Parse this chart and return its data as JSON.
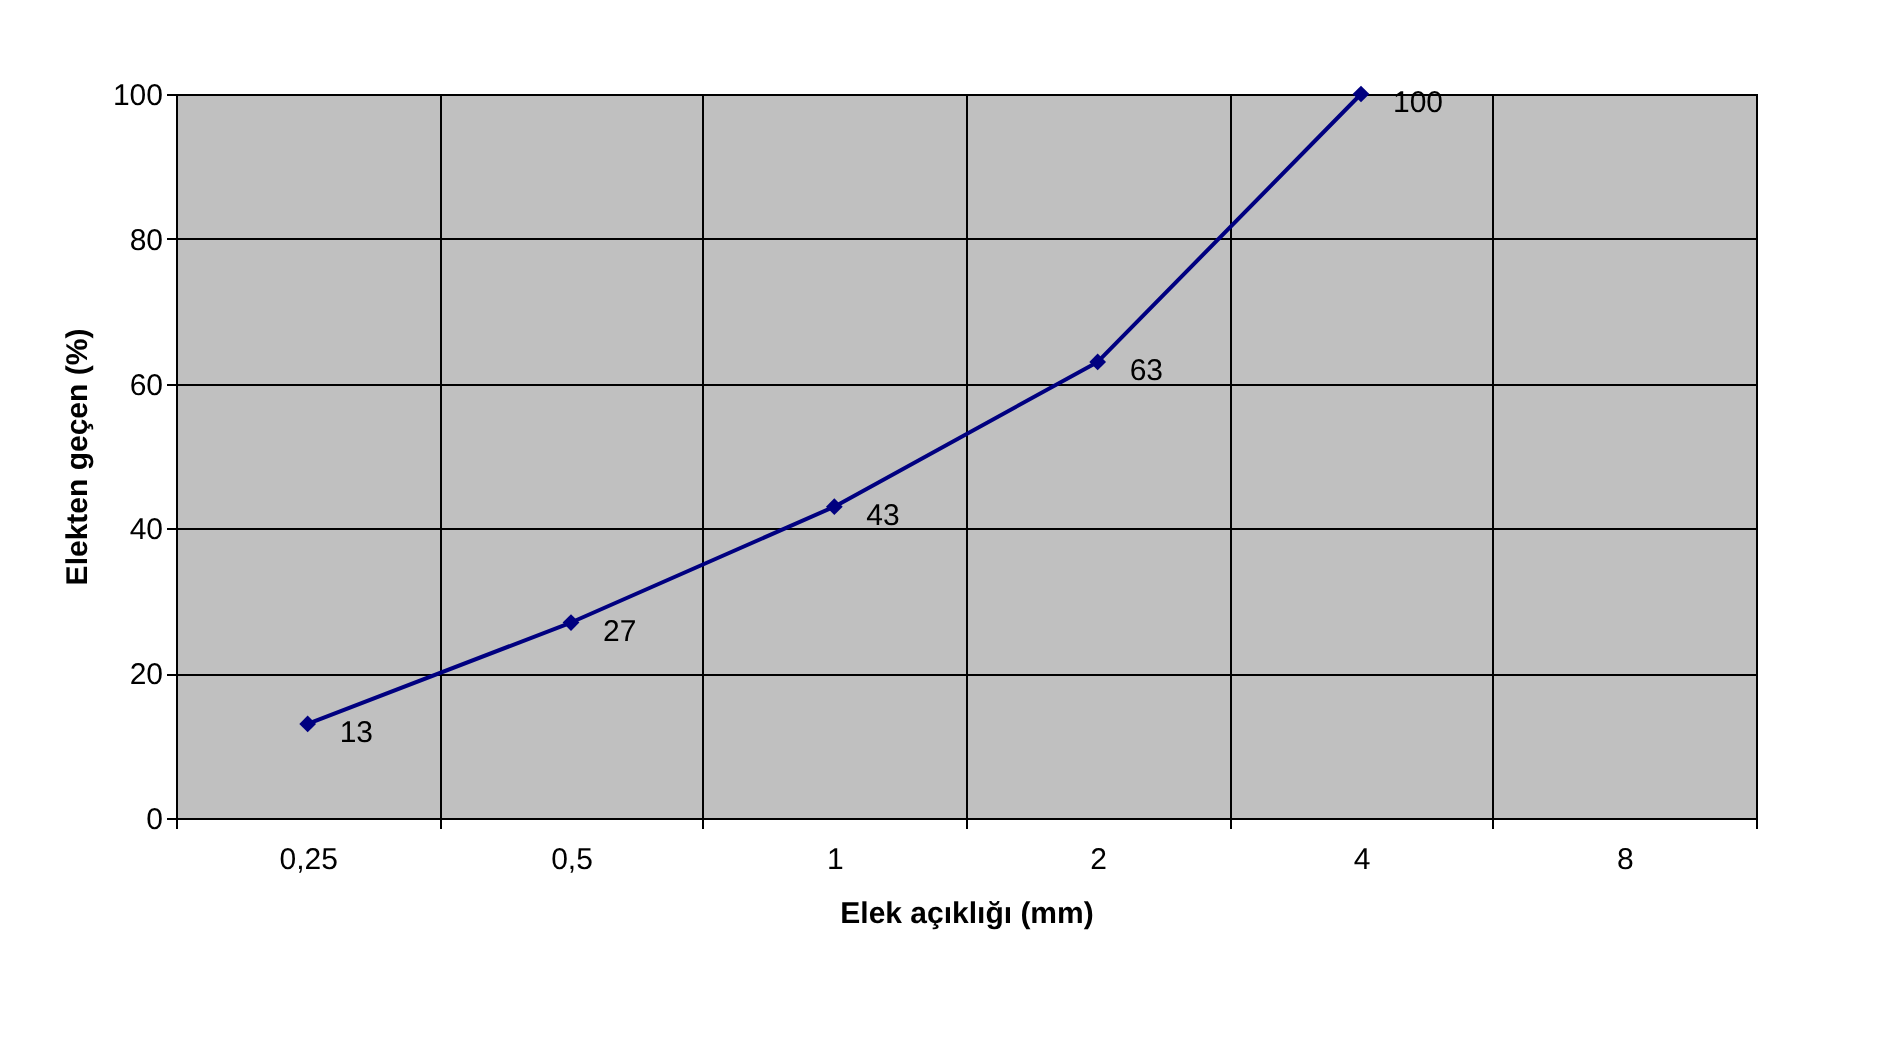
{
  "chart_data": {
    "type": "line",
    "xlabel": "Elek açıklığı (mm)",
    "ylabel": "Elekten geçen (%)",
    "categories": [
      "0,25",
      "0,5",
      "1",
      "2",
      "4",
      "8"
    ],
    "series": [
      {
        "color": "#000080",
        "values": [
          13,
          27,
          43,
          63,
          100,
          null
        ]
      }
    ],
    "ylim": [
      0,
      100
    ],
    "yticks": [
      0,
      20,
      40,
      60,
      80,
      100
    ],
    "grid": true,
    "marker": "diamond",
    "data_labels": true,
    "line_style": "solid"
  }
}
